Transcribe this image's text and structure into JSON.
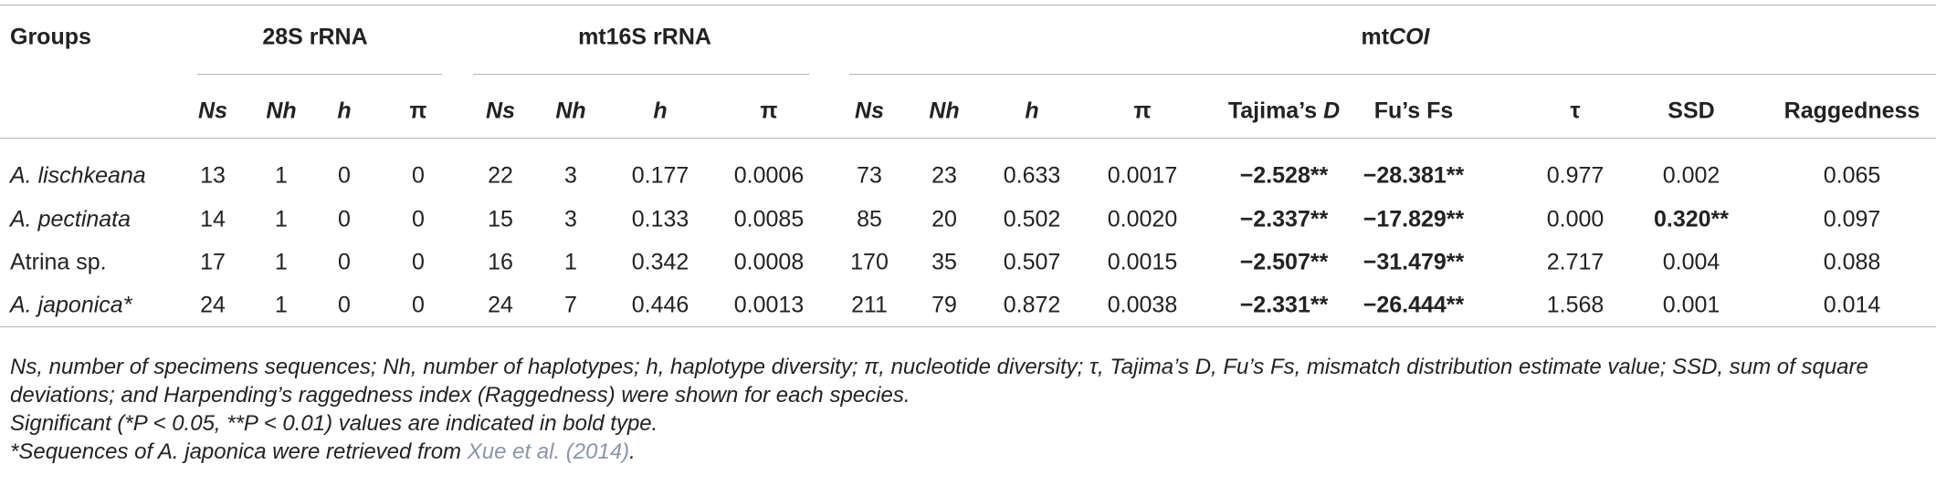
{
  "header": {
    "groups_label": "Groups",
    "column_groups": [
      {
        "parts": [
          {
            "text": "28S rRNA",
            "italic": false
          }
        ]
      },
      {
        "parts": [
          {
            "text": "mt16S rRNA",
            "italic": false
          }
        ]
      },
      {
        "parts": [
          {
            "text": "mt",
            "italic": false
          },
          {
            "text": "COI",
            "italic": true
          }
        ]
      }
    ],
    "columns": [
      [
        {
          "text": "Ns",
          "italic": true
        }
      ],
      [
        {
          "text": "Nh",
          "italic": true
        }
      ],
      [
        {
          "text": "h",
          "italic": true
        }
      ],
      [
        {
          "text": "π",
          "italic": false
        }
      ],
      [
        {
          "text": "Ns",
          "italic": true
        }
      ],
      [
        {
          "text": "Nh",
          "italic": true
        }
      ],
      [
        {
          "text": "h",
          "italic": true
        }
      ],
      [
        {
          "text": "π",
          "italic": false
        }
      ],
      [
        {
          "text": "Ns",
          "italic": true
        }
      ],
      [
        {
          "text": "Nh",
          "italic": true
        }
      ],
      [
        {
          "text": "h",
          "italic": true
        }
      ],
      [
        {
          "text": "π",
          "italic": false
        }
      ],
      [
        {
          "text": "Tajima’s ",
          "italic": false
        },
        {
          "text": "D",
          "italic": true
        }
      ],
      [
        {
          "text": "Fu’s Fs",
          "italic": false
        }
      ],
      [
        {
          "text": "τ",
          "italic": false
        }
      ],
      [
        {
          "text": "SSD",
          "italic": false
        }
      ],
      [
        {
          "text": "Raggedness",
          "italic": false
        }
      ]
    ]
  },
  "table": {
    "rows": [
      {
        "name": "A. lischkeana",
        "italic": true,
        "cells": [
          "13",
          "1",
          "0",
          "0",
          "22",
          "3",
          "0.177",
          "0.0006",
          "73",
          "23",
          "0.633",
          "0.0017",
          "−2.528**",
          "−28.381**",
          "0.977",
          "0.002",
          "0.065"
        ],
        "bold": [
          12,
          13
        ]
      },
      {
        "name": "A. pectinata",
        "italic": true,
        "cells": [
          "14",
          "1",
          "0",
          "0",
          "15",
          "3",
          "0.133",
          "0.0085",
          "85",
          "20",
          "0.502",
          "0.0020",
          "−2.337**",
          "−17.829**",
          "0.000",
          "0.320**",
          "0.097"
        ],
        "bold": [
          12,
          13,
          15
        ]
      },
      {
        "name": "Atrina sp.",
        "italic": false,
        "cells": [
          "17",
          "1",
          "0",
          "0",
          "16",
          "1",
          "0.342",
          "0.0008",
          "170",
          "35",
          "0.507",
          "0.0015",
          "−2.507**",
          "−31.479**",
          "2.717",
          "0.004",
          "0.088"
        ],
        "bold": [
          12,
          13
        ]
      },
      {
        "name": "A. japonica*",
        "italic": true,
        "cells": [
          "24",
          "1",
          "0",
          "0",
          "24",
          "7",
          "0.446",
          "0.0013",
          "211",
          "79",
          "0.872",
          "0.0038",
          "−2.331**",
          "−26.444**",
          "1.568",
          "0.001",
          "0.014"
        ],
        "bold": [
          12,
          13
        ]
      }
    ]
  },
  "footnotes": [
    [
      {
        "text": "Ns, number of specimens sequences; Nh, number of haplotypes; h, haplotype diversity; π, nucleotide diversity; τ, Tajima’s D, Fu’s Fs, mismatch distribution estimate value; SSD, sum of square deviations; and Harpending’s raggedness index (Raggedness) were shown for each species.",
        "link": false
      }
    ],
    [
      {
        "text": "Significant (*P < 0.05, **P < 0.01) values are indicated in bold type.",
        "link": false
      }
    ],
    [
      {
        "text": "*Sequences of A. japonica were retrieved from ",
        "link": false
      },
      {
        "text": "Xue et al. (2014)",
        "link": true
      },
      {
        "text": ".",
        "link": false
      }
    ]
  ]
}
